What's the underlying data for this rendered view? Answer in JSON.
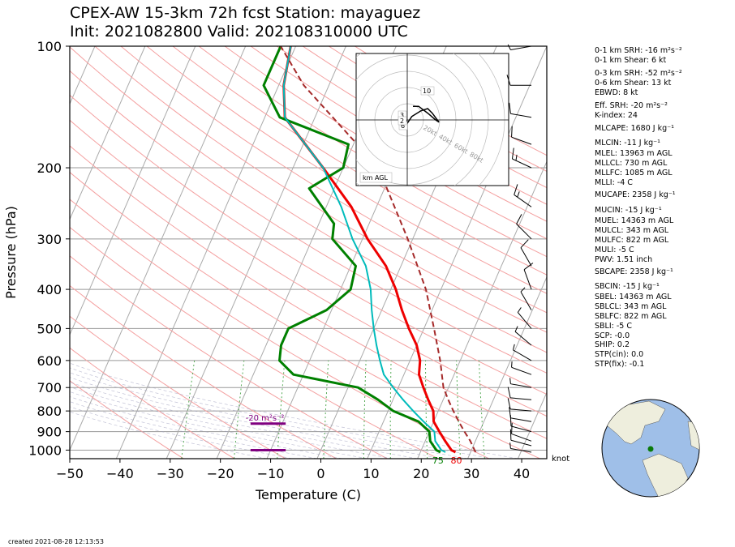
{
  "title_line1": "CPEX-AW 15-3km  72h fcst  Station: mayaguez",
  "title_line2": "Init: 2021082800  Valid: 202108310000 UTC",
  "created": "created 2021-08-28 12:13:53",
  "colors": {
    "temperature": "#ee0000",
    "dewpoint": "#008000",
    "virtual_temp": "#00bbbb",
    "parcel": "#a52a2a",
    "srh_bar": "#800080",
    "isotherm": "#aaaaaa",
    "dry_adiabat": "#f4a0a0",
    "mixing_ratio": "#55aa55"
  },
  "chart_data": {
    "type": "line",
    "skew_t": true,
    "xlabel": "Temperature (C)",
    "ylabel": "Pressure (hPa)",
    "xlim": [
      -50,
      45
    ],
    "ylim": [
      1050,
      100
    ],
    "log_y": true,
    "x_ticks": [
      "−50",
      "−40",
      "−30",
      "−20",
      "−10",
      "0",
      "10",
      "20",
      "30",
      "40"
    ],
    "y_ticks": [
      "100",
      "200",
      "300",
      "400",
      "500",
      "600",
      "700",
      "800",
      "900",
      "1000"
    ],
    "surface_temp_label": "80",
    "surface_dew_label": "75",
    "srh_label": "-20 m²s⁻²",
    "barb_unit": "knot",
    "series": [
      {
        "key": "temperature",
        "points": [
          [
            27,
            1012
          ],
          [
            26,
            1000
          ],
          [
            24,
            950
          ],
          [
            22,
            900
          ],
          [
            20,
            850
          ],
          [
            19,
            800
          ],
          [
            17,
            750
          ],
          [
            15,
            700
          ],
          [
            13,
            650
          ],
          [
            12,
            600
          ],
          [
            10,
            550
          ],
          [
            7,
            500
          ],
          [
            4,
            450
          ],
          [
            1,
            400
          ],
          [
            -3,
            350
          ],
          [
            -9,
            300
          ],
          [
            -15,
            250
          ],
          [
            -24,
            200
          ],
          [
            -36,
            150
          ],
          [
            -39,
            125
          ],
          [
            -41,
            100
          ]
        ]
      },
      {
        "key": "dewpoint",
        "points": [
          [
            24,
            1012
          ],
          [
            23,
            1000
          ],
          [
            21,
            950
          ],
          [
            20,
            900
          ],
          [
            17,
            850
          ],
          [
            11,
            800
          ],
          [
            7,
            750
          ],
          [
            2,
            700
          ],
          [
            -12,
            650
          ],
          [
            -16,
            600
          ],
          [
            -17,
            550
          ],
          [
            -17,
            500
          ],
          [
            -11,
            450
          ],
          [
            -8,
            400
          ],
          [
            -9,
            350
          ],
          [
            -16,
            300
          ],
          [
            -17,
            275
          ],
          [
            -25,
            225
          ],
          [
            -20,
            200
          ],
          [
            -21,
            175
          ],
          [
            -37,
            150
          ],
          [
            -43,
            125
          ],
          [
            -43,
            100
          ]
        ]
      },
      {
        "key": "virtual_temp",
        "points": [
          [
            25,
            1012
          ],
          [
            24,
            1000
          ],
          [
            22,
            950
          ],
          [
            21,
            900
          ],
          [
            18,
            850
          ],
          [
            15,
            800
          ],
          [
            12,
            750
          ],
          [
            9,
            700
          ],
          [
            6,
            650
          ],
          [
            4,
            600
          ],
          [
            2,
            550
          ],
          [
            0,
            500
          ],
          [
            -2,
            450
          ],
          [
            -4,
            400
          ],
          [
            -7,
            350
          ],
          [
            -12,
            300
          ],
          [
            -17,
            250
          ],
          [
            -24,
            200
          ],
          [
            -36,
            150
          ],
          [
            -39,
            125
          ],
          [
            -41,
            100
          ]
        ]
      },
      {
        "key": "parcel",
        "points": [
          [
            31,
            1012
          ],
          [
            29,
            950
          ],
          [
            27,
            900
          ],
          [
            25,
            850
          ],
          [
            23,
            800
          ],
          [
            21,
            750
          ],
          [
            19,
            700
          ],
          [
            16,
            600
          ],
          [
            12,
            500
          ],
          [
            7,
            400
          ],
          [
            -1,
            300
          ],
          [
            -13,
            200
          ],
          [
            -35,
            125
          ],
          [
            -43,
            100
          ]
        ]
      }
    ],
    "barbs": [
      {
        "p": 1012,
        "speed": 8,
        "dir": 100
      },
      {
        "p": 975,
        "speed": 10,
        "dir": 105
      },
      {
        "p": 950,
        "speed": 12,
        "dir": 110
      },
      {
        "p": 900,
        "speed": 13,
        "dir": 105
      },
      {
        "p": 850,
        "speed": 14,
        "dir": 100
      },
      {
        "p": 800,
        "speed": 12,
        "dir": 95
      },
      {
        "p": 750,
        "speed": 10,
        "dir": 95
      },
      {
        "p": 700,
        "speed": 8,
        "dir": 100
      },
      {
        "p": 650,
        "speed": 6,
        "dir": 110
      },
      {
        "p": 600,
        "speed": 5,
        "dir": 120
      },
      {
        "p": 550,
        "speed": 5,
        "dir": 130
      },
      {
        "p": 500,
        "speed": 6,
        "dir": 140
      },
      {
        "p": 450,
        "speed": 8,
        "dir": 150
      },
      {
        "p": 400,
        "speed": 10,
        "dir": 160
      },
      {
        "p": 350,
        "speed": 12,
        "dir": 150
      },
      {
        "p": 300,
        "speed": 14,
        "dir": 135
      },
      {
        "p": 250,
        "speed": 15,
        "dir": 125
      },
      {
        "p": 200,
        "speed": 15,
        "dir": 115
      },
      {
        "p": 175,
        "speed": 14,
        "dir": 110
      },
      {
        "p": 150,
        "speed": 12,
        "dir": 100
      },
      {
        "p": 125,
        "speed": 10,
        "dir": 90
      },
      {
        "p": 100,
        "speed": 8,
        "dir": 80
      }
    ],
    "hodograph": {
      "ring_labels": [
        "20kt",
        "40kt",
        "60kt",
        "80kt"
      ],
      "height_labels": [
        "10",
        "6",
        "3",
        "2"
      ],
      "footer": "km AGL",
      "points": [
        [
          -3,
          2
        ],
        [
          -1,
          0
        ],
        [
          0,
          -3
        ],
        [
          4,
          3
        ],
        [
          12,
          8
        ],
        [
          18,
          10
        ],
        [
          22,
          6
        ],
        [
          28,
          -2
        ],
        [
          25,
          0
        ],
        [
          18,
          6
        ],
        [
          10,
          12
        ],
        [
          5,
          12
        ]
      ]
    },
    "indices": [
      "0-1 km SRH: -16 m²s⁻²",
      "0-1 km Shear: 6 kt",
      "0-3 km SRH: -52 m²s⁻²",
      "0-6 km Shear: 13 kt",
      "EBWD: 8 kt",
      "Eff. SRH: -20 m²s⁻²",
      "K-index: 24",
      "MLCAPE: 1680 J kg⁻¹",
      "MLCIN: -11 J kg⁻¹",
      "MLEL: 13963 m AGL",
      "MLLCL: 730 m AGL",
      "MLLFC: 1085 m AGL",
      "MLLI: -4 C",
      "MUCAPE: 2358 J kg⁻¹",
      "MUCIN: -15 J kg⁻¹",
      "MUEL: 14363 m AGL",
      "MULCL: 343 m AGL",
      "MULFC: 822 m AGL",
      "MULI: -5 C",
      "PWV: 1.51 inch",
      "SBCAPE: 2358 J kg⁻¹",
      "SBCIN: -15 J kg⁻¹",
      "SBEL: 14363 m AGL",
      "SBLCL: 343 m AGL",
      "SBLFC: 822 m AGL",
      "SBLI: -5 C",
      "SCP: -0.0",
      "SHIP: 0.2",
      "STP(cin): 0.0",
      "STP(fix): -0.1"
    ]
  }
}
